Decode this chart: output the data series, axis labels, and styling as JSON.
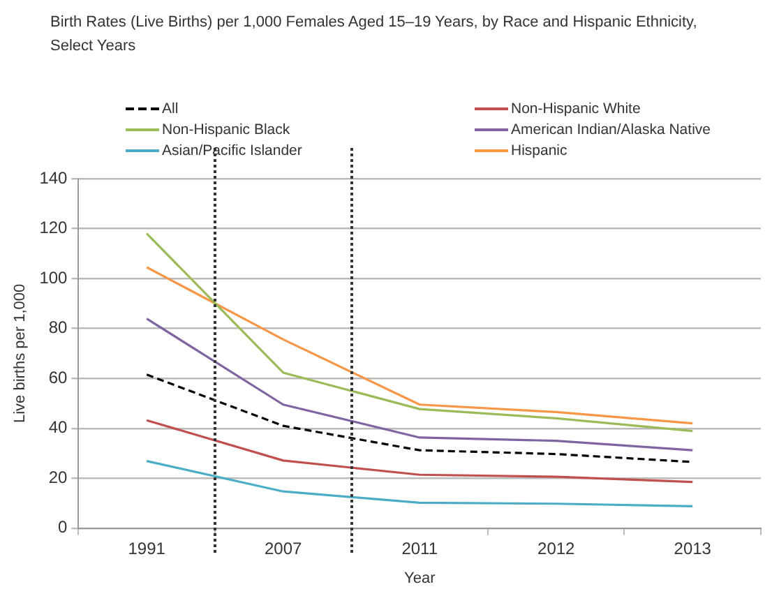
{
  "chart_data": {
    "type": "line",
    "title": "Birth Rates (Live Births) per 1,000 Females Aged 15–19 Years, by Race and Hispanic Ethnicity, Select Years",
    "xlabel": "Year",
    "ylabel": "Live births per 1,000",
    "categories": [
      "1991",
      "2007",
      "2011",
      "2012",
      "2013"
    ],
    "series": [
      {
        "name": "All",
        "color": "#000000",
        "line_style": "dashed",
        "values": [
          61.5,
          41,
          31.2,
          29.7,
          26.5
        ]
      },
      {
        "name": "Non-Hispanic Black",
        "color": "#9bbb59",
        "values": [
          118,
          62.3,
          47.7,
          44,
          38.9
        ]
      },
      {
        "name": "Asian/Pacific Islander",
        "color": "#4bacc6",
        "values": [
          26.9,
          14.7,
          10.2,
          9.8,
          8.8
        ]
      },
      {
        "name": "Non-Hispanic White",
        "color": "#c0504d",
        "values": [
          43.2,
          27.1,
          21.4,
          20.6,
          18.5
        ]
      },
      {
        "name": "American Indian/Alaska Native",
        "color": "#8064a2",
        "values": [
          83.9,
          49.5,
          36.3,
          35,
          31.2
        ]
      },
      {
        "name": "Hispanic",
        "color": "#f79646",
        "values": [
          104.5,
          75.6,
          49.5,
          46.5,
          42
        ]
      }
    ],
    "ylim": [
      0,
      140
    ],
    "yticks": [
      0,
      20,
      40,
      60,
      80,
      100,
      120,
      140
    ],
    "grid": "y",
    "legend": "top",
    "marker": "none",
    "line_style": "solid"
  }
}
